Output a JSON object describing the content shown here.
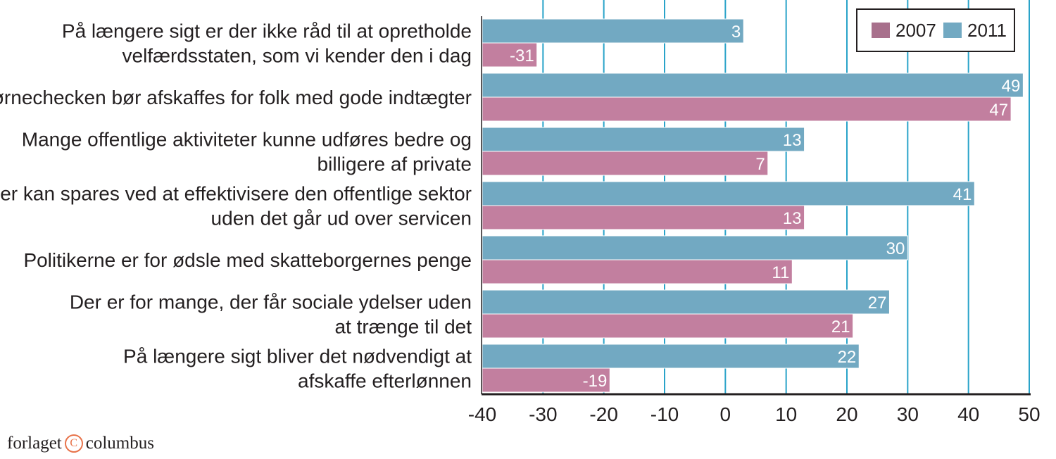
{
  "chart_data": {
    "type": "bar",
    "orientation": "horizontal",
    "categories": [
      [
        "På længere sigt er der ikke råd til at opretholde",
        "velfærdsstaten, som vi kender den i dag"
      ],
      [
        "Børnechecken bør afskaffes for folk med gode indtægter"
      ],
      [
        "Mange offentlige aktiviteter kunne udføres bedre og",
        "billigere af private"
      ],
      [
        "Der kan spares ved at effektivisere den offentlige sektor",
        "uden det går ud over servicen"
      ],
      [
        "Politikerne er for ødsle med skatteborgernes penge"
      ],
      [
        "Der er for mange, der får sociale ydelser uden",
        "at trænge til det"
      ],
      [
        "På længere sigt bliver det nødvendigt at",
        "afskaffe efterlønnen"
      ]
    ],
    "series": [
      {
        "name": "2011",
        "color": "#72a9c2",
        "values": [
          3,
          49,
          13,
          41,
          30,
          27,
          22
        ]
      },
      {
        "name": "2007",
        "color": "#c27f9f",
        "values": [
          -31,
          47,
          7,
          13,
          11,
          21,
          -19
        ]
      }
    ],
    "legend": [
      {
        "name": "2007",
        "color": "#a8708c"
      },
      {
        "name": "2011",
        "color": "#72a9c2"
      }
    ],
    "legend_position": "top-right",
    "xlim": [
      -40,
      50
    ],
    "xticks": [
      -40,
      -30,
      -20,
      -10,
      0,
      10,
      20,
      30,
      40,
      50
    ],
    "gridline_color": "#29a3c9",
    "grid": true
  },
  "publisher": {
    "left": "forlaget",
    "symbol": "C",
    "right": "columbus"
  }
}
